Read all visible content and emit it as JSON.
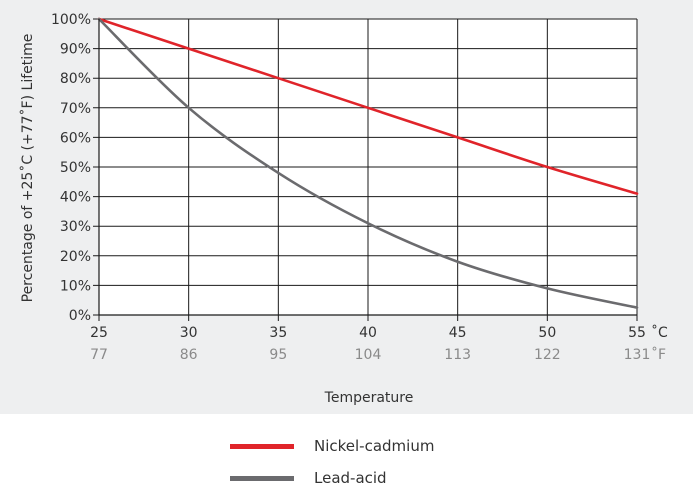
{
  "chart_data": {
    "type": "line",
    "title": "",
    "xlabel": "Temperature",
    "ylabel": "Percentage of +25˚C (+77˚F) Lifetime",
    "x": [
      25,
      30,
      35,
      40,
      45,
      50,
      55
    ],
    "x_ticks_c": [
      "25",
      "30",
      "35",
      "40",
      "45",
      "50",
      "55"
    ],
    "x_ticks_f": [
      "77",
      "86",
      "95",
      "104",
      "113",
      "122",
      "131"
    ],
    "x_unit_c": "˚C",
    "x_unit_f": "˚F",
    "xlim": [
      25,
      55
    ],
    "ylim": [
      0,
      100
    ],
    "y_ticks": [
      "0%",
      "10%",
      "20%",
      "30%",
      "40%",
      "50%",
      "60%",
      "70%",
      "80%",
      "90%",
      "100%"
    ],
    "grid": true,
    "legend_position": "bottom-center",
    "series": [
      {
        "name": "Nickel-cadmium",
        "color": "#e0242a",
        "values": [
          100,
          90,
          80,
          70,
          60,
          50,
          41
        ]
      },
      {
        "name": "Lead-acid",
        "color": "#6b6b6e",
        "values": [
          100,
          70,
          48,
          31,
          18,
          9,
          2.5
        ]
      }
    ]
  }
}
